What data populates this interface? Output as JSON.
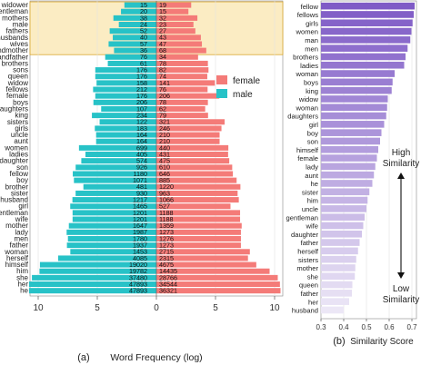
{
  "chart_data": [
    {
      "type": "bar",
      "orientation": "diverging-horizontal",
      "panel_label": "(a)",
      "xlabel": "Word Frequency (log)",
      "x_ticks": [
        "10",
        "5",
        "0",
        "5",
        "10"
      ],
      "legend": [
        "female",
        "male"
      ],
      "legend_position": "right, upper middle",
      "colors": {
        "female": "#f47b78",
        "male": "#27c2c7",
        "highlight": "#fbecc3",
        "highlight_border": "#d9a62d"
      },
      "highlighted_rows": 8,
      "categories": [
        "widower",
        "gentleman",
        "mothers",
        "male",
        "fathers",
        "husbands",
        "wives",
        "grandmother",
        "grandfather",
        "brothers",
        "sons",
        "queen",
        "widow",
        "fellows",
        "female",
        "boys",
        "daughters",
        "king",
        "sisters",
        "girls",
        "uncle",
        "aunt",
        "women",
        "ladies",
        "daughter",
        "son",
        "fellow",
        "boy",
        "brother",
        "sister",
        "husband",
        "girl",
        "gentleman",
        "wife",
        "mother",
        "lady",
        "men",
        "father",
        "woman",
        "herself",
        "himself",
        "him",
        "she",
        "her",
        "he"
      ],
      "series": [
        {
          "name": "male",
          "values": [
            15,
            20,
            38,
            24,
            52,
            40,
            57,
            36,
            76,
            61,
            176,
            176,
            158,
            212,
            176,
            206,
            107,
            234,
            122,
            183,
            164,
            164,
            699,
            405,
            574,
            926,
            1180,
            1071,
            481,
            930,
            1217,
            1465,
            1201,
            1201,
            1647,
            1987,
            1780,
            1937,
            1453,
            4085,
            19020,
            19782,
            37480,
            47893,
            47893
          ]
        },
        {
          "name": "female",
          "values": [
            19,
            15,
            32,
            23,
            27,
            43,
            47,
            68,
            34,
            78,
            82,
            74,
            141,
            76,
            206,
            78,
            62,
            79,
            321,
            246,
            210,
            210,
            440,
            431,
            475,
            610,
            646,
            885,
            1220,
            963,
            1066,
            527,
            1188,
            1188,
            1359,
            1273,
            1276,
            1273,
            2715,
            2315,
            4675,
            14435,
            28766,
            34544,
            36321
          ]
        }
      ]
    },
    {
      "type": "bar",
      "orientation": "horizontal",
      "panel_label": "(b)",
      "xlabel": "Similarity Score",
      "x_ticks": [
        "0.3",
        "0.4",
        "0.5",
        "0.6",
        "0.7"
      ],
      "xlim": [
        0.3,
        0.72
      ],
      "annotation_top": [
        "High",
        "Similarity"
      ],
      "annotation_bottom": [
        "Low",
        "Similarity"
      ],
      "color_high": "#7f5bc6",
      "color_low": "#ece7f6",
      "categories": [
        "fellow",
        "fellows",
        "girls",
        "women",
        "man",
        "men",
        "brothers",
        "ladies",
        "woman",
        "boys",
        "king",
        "widow",
        "woman",
        "daughters",
        "girl",
        "boy",
        "son",
        "himself",
        "female",
        "lady",
        "aunt",
        "he",
        "sister",
        "him",
        "uncle",
        "gentleman",
        "wife",
        "daughter",
        "father",
        "herself",
        "sisters",
        "mother",
        "she",
        "queen",
        "father",
        "her",
        "husband"
      ],
      "values": [
        0.712,
        0.708,
        0.703,
        0.698,
        0.693,
        0.681,
        0.672,
        0.666,
        0.624,
        0.615,
        0.611,
        0.594,
        0.591,
        0.587,
        0.578,
        0.566,
        0.56,
        0.552,
        0.546,
        0.539,
        0.533,
        0.526,
        0.513,
        0.505,
        0.5,
        0.492,
        0.486,
        0.48,
        0.47,
        0.463,
        0.455,
        0.451,
        0.449,
        0.438,
        0.436,
        0.424,
        0.4
      ]
    }
  ]
}
